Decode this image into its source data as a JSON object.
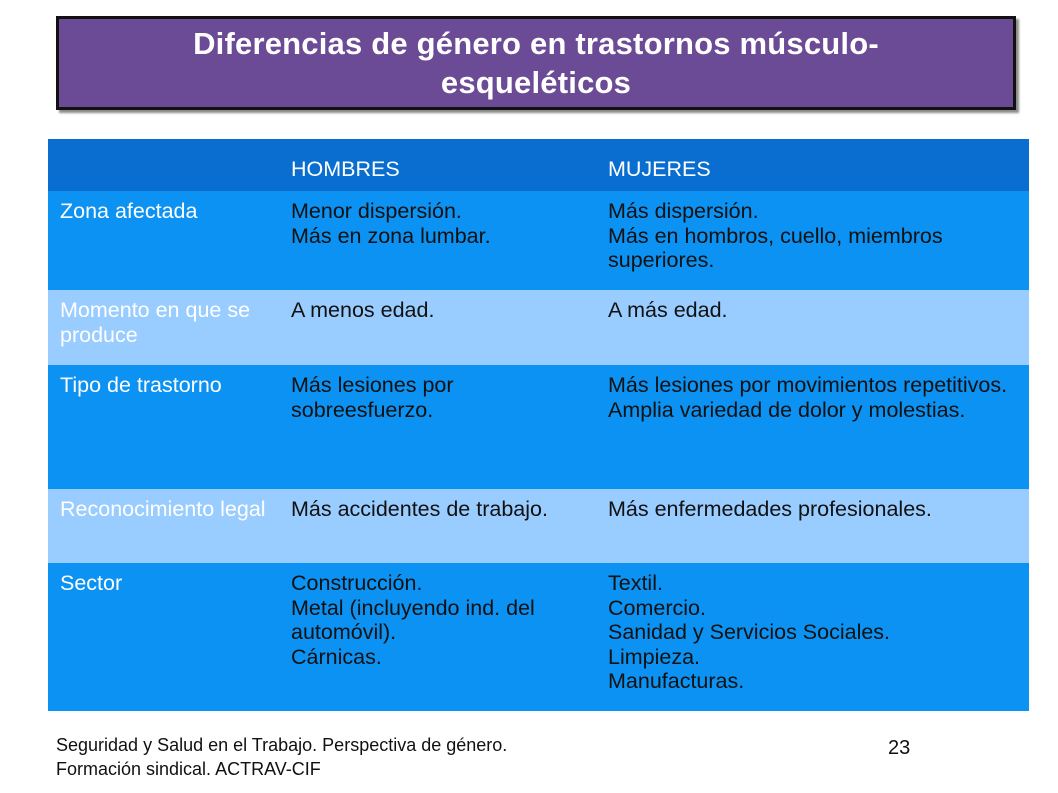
{
  "title": {
    "line1": "Diferencias de género en trastornos músculo-",
    "line2": "esqueléticos"
  },
  "table": {
    "header": {
      "col1": "",
      "col2": "HOMBRES",
      "col3": "MUJERES"
    },
    "rows": [
      {
        "label": "Zona afectada",
        "hombres": "Menor dispersión.\nMás en zona lumbar.",
        "mujeres": "Más dispersión.\nMás en hombros, cuello, miembros superiores."
      },
      {
        "label": "Momento en que se produce",
        "hombres": "A menos edad.",
        "mujeres": "A más edad."
      },
      {
        "label": "Tipo de trastorno",
        "hombres": "Más lesiones por sobreesfuerzo.",
        "mujeres": "Más lesiones por movimientos repetitivos.\nAmplia variedad de dolor y molestias."
      },
      {
        "label": "Reconocimiento legal",
        "hombres": "Más accidentes de trabajo.",
        "mujeres": "Más enfermedades profesionales."
      },
      {
        "label": "Sector",
        "hombres": "Construcción.\nMetal (incluyendo ind. del automóvil).\nCárnicas.",
        "mujeres": "Textil.\nComercio.\nSanidad y Servicios Sociales.\nLimpieza.\nManufacturas."
      }
    ]
  },
  "footer": {
    "line1": "Seguridad y Salud en el Trabajo. Perspectiva de género.",
    "line2": "Formación sindical. ACTRAV-CIF",
    "page_number": "23"
  },
  "colors": {
    "title_bg": "#6b4a96",
    "header_bg": "#0a6ed1",
    "row_dark": "#0b92f2",
    "row_light": "#99ccff"
  }
}
